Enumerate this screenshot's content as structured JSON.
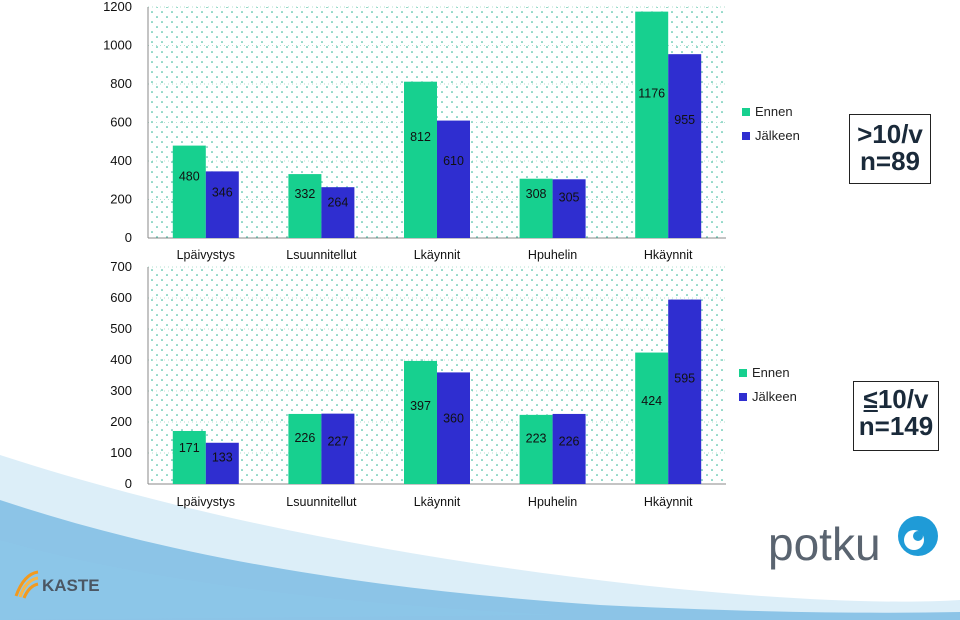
{
  "chart_data": [
    {
      "type": "bar",
      "categories": [
        "Lpäivystys",
        "Lsuunnitellut",
        "Lkäynnit",
        "Hpuhelin",
        "Hkäynnit"
      ],
      "series": [
        {
          "name": "Ennen",
          "values": [
            480,
            332,
            812,
            308,
            1176
          ],
          "color": "#17d08f"
        },
        {
          "name": "Jälkeen",
          "values": [
            346,
            264,
            610,
            305,
            955
          ],
          "color": "#2f2ed0"
        }
      ],
      "ylim": [
        0,
        1200
      ],
      "yticks": [
        "0",
        "200",
        "400",
        "600",
        "800",
        "1000",
        "1200"
      ],
      "grid": "dotted",
      "legend": "right"
    },
    {
      "type": "bar",
      "categories": [
        "Lpäivystys",
        "Lsuunnitellut",
        "Lkäynnit",
        "Hpuhelin",
        "Hkäynnit"
      ],
      "series": [
        {
          "name": "Ennen",
          "values": [
            171,
            226,
            397,
            223,
            424
          ],
          "color": "#17d08f"
        },
        {
          "name": "Jälkeen",
          "values": [
            133,
            227,
            360,
            226,
            595
          ],
          "color": "#2f2ed0"
        }
      ],
      "ylim": [
        0,
        700
      ],
      "yticks": [
        "0",
        "100",
        "200",
        "300",
        "400",
        "500",
        "600",
        "700"
      ],
      "grid": "dotted",
      "legend": "right"
    }
  ],
  "callouts": {
    "top": {
      "line1": ">10/v",
      "line2": "n=89"
    },
    "bottom": {
      "symbol": "≤",
      "line1": "10/v",
      "line2": "n=149"
    }
  },
  "logos": {
    "potku": "potku",
    "kaste": "KASTE"
  },
  "colors": {
    "wave_dark": "#4aa3d8",
    "wave_light": "#bfe0f2",
    "logo_gray": "#5a6470",
    "logo_blue": "#1f9bd7",
    "kaste_orange": "#f39a1e"
  }
}
